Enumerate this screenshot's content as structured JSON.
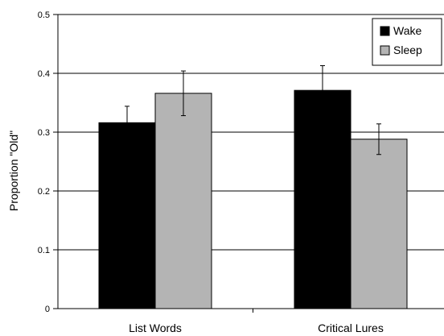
{
  "chart_data": {
    "type": "bar",
    "title": "",
    "xlabel": "",
    "ylabel": "Proportion \"Old\"",
    "categories": [
      "List Words",
      "Critical Lures"
    ],
    "series": [
      {
        "name": "Wake",
        "color": "#000000",
        "values": [
          0.316,
          0.371
        ],
        "errors": [
          0.028,
          0.042
        ]
      },
      {
        "name": "Sleep",
        "color": "#b4b4b4",
        "values": [
          0.366,
          0.288
        ],
        "errors": [
          0.038,
          0.026
        ]
      }
    ],
    "ylim": [
      0,
      0.5
    ],
    "yticks": [
      0,
      0.1,
      0.2,
      0.3,
      0.4,
      0.5
    ],
    "ytick_labels": [
      "0",
      "0.1",
      "0.2",
      "0.3",
      "0.4",
      "0.5"
    ],
    "grid": true,
    "legend": "top-right"
  }
}
